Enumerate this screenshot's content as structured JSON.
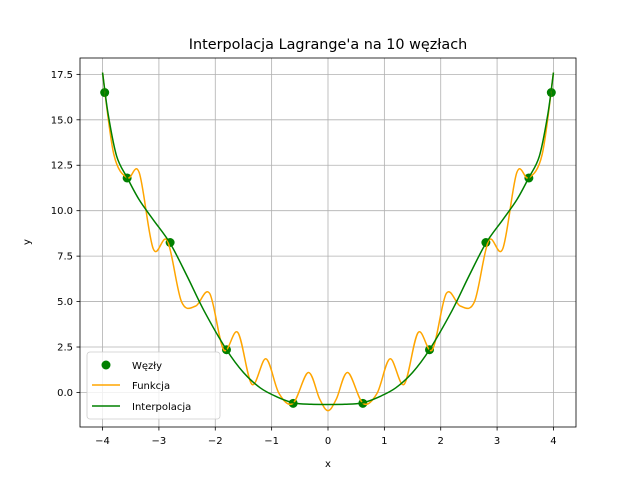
{
  "chart_data": {
    "type": "line",
    "title": "Interpolacja Lagrange'a na 10 węzłach",
    "xlabel": "x",
    "ylabel": "y",
    "xlim": [
      -4.4,
      4.4
    ],
    "ylim": [
      -1.9,
      18.4
    ],
    "x_ticks": [
      -4,
      -3,
      -2,
      -1,
      0,
      1,
      2,
      3,
      4
    ],
    "y_ticks": [
      0.0,
      2.5,
      5.0,
      7.5,
      10.0,
      12.5,
      15.0,
      17.5
    ],
    "x_tick_labels": [
      "−4",
      "−3",
      "−2",
      "−1",
      "0",
      "1",
      "2",
      "3",
      "4"
    ],
    "y_tick_labels": [
      "0.0",
      "2.5",
      "5.0",
      "7.5",
      "10.0",
      "12.5",
      "15.0",
      "17.5"
    ],
    "grid": true,
    "legend_position": "lower left",
    "series": [
      {
        "name": "Węzły",
        "kind": "scatter",
        "color": "#008000",
        "x": [
          -3.962,
          -3.564,
          -2.801,
          -1.801,
          -0.618,
          0.618,
          1.801,
          2.801,
          3.564,
          3.962
        ],
        "y": [
          16.5,
          11.8,
          8.25,
          2.35,
          -0.6,
          -0.6,
          2.35,
          8.25,
          11.8,
          16.5
        ]
      },
      {
        "name": "Funkcja",
        "kind": "line",
        "color": "#ffa500",
        "x": [
          -4.0,
          -3.8,
          -3.56,
          -3.35,
          -3.1,
          -2.85,
          -2.6,
          -2.35,
          -2.1,
          -1.85,
          -1.6,
          -1.35,
          -1.1,
          -0.87,
          -0.62,
          -0.35,
          -0.15,
          0.0,
          0.15,
          0.35,
          0.62,
          0.87,
          1.1,
          1.35,
          1.6,
          1.85,
          2.1,
          2.35,
          2.6,
          2.85,
          3.1,
          3.35,
          3.56,
          3.8,
          4.0
        ],
        "y": [
          17.6,
          13.1,
          11.8,
          12.1,
          7.9,
          8.35,
          5.0,
          4.75,
          5.45,
          2.35,
          3.3,
          0.45,
          1.85,
          -0.05,
          -0.6,
          1.1,
          -0.35,
          -1.0,
          -0.35,
          1.1,
          -0.6,
          -0.05,
          1.85,
          0.45,
          3.3,
          2.35,
          5.45,
          4.75,
          5.0,
          8.35,
          7.9,
          12.1,
          11.8,
          13.1,
          17.6
        ]
      },
      {
        "name": "Interpolacja",
        "kind": "line",
        "color": "#008000",
        "x": [
          -4.0,
          -3.9,
          -3.75,
          -3.56,
          -3.35,
          -3.1,
          -2.8,
          -2.5,
          -2.2,
          -1.8,
          -1.5,
          -1.2,
          -0.9,
          -0.6,
          -0.3,
          0.0,
          0.3,
          0.6,
          0.9,
          1.2,
          1.5,
          1.8,
          2.2,
          2.5,
          2.8,
          3.1,
          3.35,
          3.56,
          3.75,
          3.9,
          4.0
        ],
        "y": [
          17.6,
          15.3,
          13.0,
          11.8,
          10.6,
          9.5,
          8.2,
          6.4,
          4.5,
          2.35,
          1.1,
          0.25,
          -0.25,
          -0.58,
          -0.65,
          -0.66,
          -0.65,
          -0.58,
          -0.25,
          0.25,
          1.1,
          2.35,
          4.5,
          6.4,
          8.2,
          9.5,
          10.6,
          11.8,
          13.0,
          15.3,
          17.6
        ]
      }
    ]
  }
}
